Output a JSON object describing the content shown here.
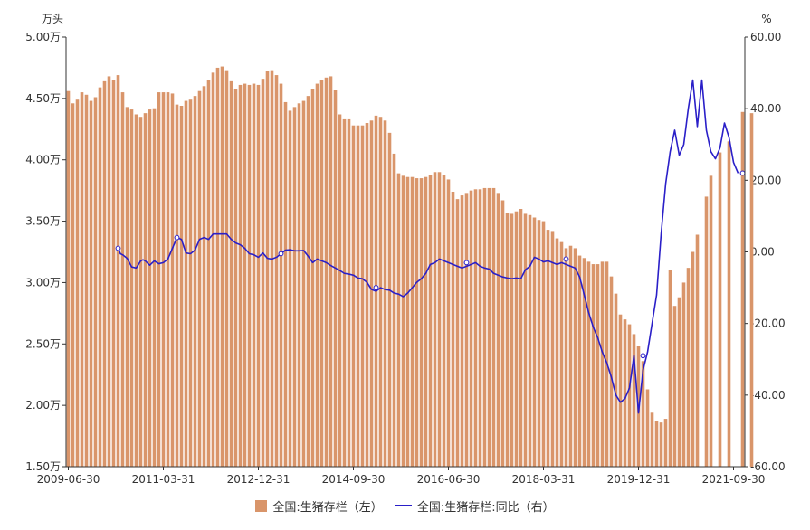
{
  "colors": {
    "bar": "#d9956a",
    "line": "#2a1fc8",
    "axis": "#333333"
  },
  "chart_data": {
    "type": "bar",
    "title": "",
    "left_unit": "万头",
    "right_unit": "%",
    "left_axis": {
      "min": 1.5,
      "max": 5.0,
      "ticks": [
        "1.50万",
        "2.00万",
        "2.50万",
        "3.00万",
        "3.50万",
        "4.00万",
        "4.50万",
        "5.00万"
      ]
    },
    "right_axis": {
      "min": -60,
      "max": 60,
      "ticks": [
        "-60.00",
        "-40.00",
        "-20.00",
        "0.00",
        "20.00",
        "40.00",
        "60.00"
      ]
    },
    "x_ticks": [
      {
        "index": 0,
        "label": "2009-06-30"
      },
      {
        "index": 21,
        "label": "2011-03-31"
      },
      {
        "index": 42,
        "label": "2012-12-31"
      },
      {
        "index": 63,
        "label": "2014-09-30"
      },
      {
        "index": 84,
        "label": "2016-06-30"
      },
      {
        "index": 105,
        "label": "2018-03-31"
      },
      {
        "index": 126,
        "label": "2019-12-31"
      },
      {
        "index": 147,
        "label": "2021-09-30"
      }
    ],
    "series": [
      {
        "name": "全国:生猪存栏（左）",
        "type": "bar",
        "axis": "left",
        "unit": "万头",
        "values": [
          4.56,
          4.46,
          4.49,
          4.55,
          4.53,
          4.48,
          4.51,
          4.59,
          4.64,
          4.68,
          4.65,
          4.69,
          4.55,
          4.43,
          4.41,
          4.37,
          4.35,
          4.38,
          4.41,
          4.42,
          4.55,
          4.55,
          4.55,
          4.54,
          4.45,
          4.44,
          4.48,
          4.49,
          4.52,
          4.56,
          4.6,
          4.65,
          4.71,
          4.75,
          4.76,
          4.73,
          4.64,
          4.58,
          4.61,
          4.62,
          4.61,
          4.62,
          4.61,
          4.66,
          4.72,
          4.73,
          4.69,
          4.62,
          4.47,
          4.4,
          4.43,
          4.46,
          4.48,
          4.52,
          4.58,
          4.62,
          4.65,
          4.67,
          4.68,
          4.57,
          4.37,
          4.33,
          4.33,
          4.28,
          4.28,
          4.28,
          4.3,
          4.32,
          4.36,
          4.35,
          4.32,
          4.22,
          4.05,
          3.89,
          3.87,
          3.86,
          3.86,
          3.85,
          3.85,
          3.86,
          3.88,
          3.9,
          3.9,
          3.88,
          3.84,
          3.74,
          3.68,
          3.71,
          3.73,
          3.75,
          3.76,
          3.76,
          3.77,
          3.77,
          3.77,
          3.73,
          3.67,
          3.57,
          3.56,
          3.58,
          3.6,
          3.56,
          3.55,
          3.53,
          3.51,
          3.5,
          3.43,
          3.42,
          3.36,
          3.33,
          3.28,
          3.3,
          3.28,
          3.22,
          3.2,
          3.17,
          3.15,
          3.15,
          3.17,
          3.17,
          3.05,
          2.91,
          2.74,
          2.7,
          2.66,
          2.58,
          2.48,
          2.36,
          2.13,
          1.94,
          1.87,
          1.86,
          1.89,
          3.1,
          2.81,
          2.88,
          3.0,
          3.12,
          3.25,
          3.39,
          null,
          3.7,
          3.87,
          null,
          4.06,
          null,
          4.15,
          null,
          null,
          4.39,
          null,
          4.38
        ]
      },
      {
        "name": "全国:生猪存栏:同比（右）",
        "type": "line",
        "axis": "right",
        "unit": "%",
        "x": [
          11,
          11.5,
          12,
          13,
          14,
          15,
          16,
          16.5,
          17,
          18,
          19,
          20,
          21,
          22,
          23,
          24,
          25,
          26,
          27,
          28,
          29,
          30,
          31,
          32,
          33,
          34,
          35,
          36,
          37,
          38,
          39,
          40,
          41,
          42,
          43,
          44,
          45,
          46,
          47,
          48,
          49,
          50,
          51,
          52,
          53,
          54,
          55,
          56,
          57,
          58,
          59,
          60,
          61,
          62,
          63,
          64,
          65,
          66,
          67,
          68,
          69,
          70,
          71,
          72,
          73,
          74,
          75,
          76,
          77,
          78,
          79,
          80,
          81,
          82,
          83,
          84,
          85,
          86,
          87,
          88,
          89,
          90,
          91,
          92,
          93,
          94,
          95,
          96,
          97,
          98,
          99,
          100,
          101,
          102,
          103,
          104,
          105,
          106,
          107,
          108,
          109,
          110,
          111,
          112,
          113,
          114,
          115,
          116,
          117,
          118,
          119,
          120,
          121,
          122,
          123,
          124,
          125,
          126,
          127,
          128,
          129,
          130,
          131,
          132,
          133,
          134,
          135,
          136,
          137,
          138,
          139,
          140,
          141,
          142,
          143,
          144,
          145,
          146,
          147,
          148
        ],
        "values": [
          1.0,
          -0.5,
          -0.8,
          -1.8,
          -4.2,
          -4.5,
          -2.5,
          -2.2,
          -2.5,
          -3.7,
          -2.5,
          -3.3,
          -3.0,
          -2.0,
          1.0,
          4.0,
          3.5,
          -0.3,
          -0.5,
          0.5,
          3.5,
          4.0,
          3.5,
          5.0,
          5.0,
          5.0,
          5.0,
          3.5,
          2.5,
          2.0,
          1.0,
          -0.5,
          -0.8,
          -1.5,
          -0.3,
          -1.8,
          -2.0,
          -1.5,
          -0.5,
          0.5,
          0.6,
          0.3,
          0.3,
          0.4,
          -1.2,
          -3.0,
          -2.0,
          -2.5,
          -3.0,
          -3.8,
          -4.5,
          -5.2,
          -6.0,
          -6.2,
          -6.5,
          -7.3,
          -7.5,
          -8.5,
          -10.5,
          -11.0,
          -10.0,
          -10.5,
          -10.7,
          -11.5,
          -11.8,
          -12.5,
          -11.5,
          -10.0,
          -8.5,
          -7.5,
          -6.0,
          -3.5,
          -3.0,
          -2.0,
          -2.5,
          -3.0,
          -3.5,
          -4.0,
          -4.5,
          -4.0,
          -3.5,
          -3.0,
          -4.0,
          -4.5,
          -4.8,
          -6.0,
          -6.5,
          -7.0,
          -7.3,
          -7.5,
          -7.3,
          -7.5,
          -5.0,
          -4.0,
          -1.5,
          -2.0,
          -2.8,
          -2.5,
          -3.0,
          -3.5,
          -3.0,
          -3.5,
          -4.0,
          -4.5,
          -7.0,
          -12.0,
          -17.0,
          -21.0,
          -24.0,
          -28.0,
          -31.0,
          -35.0,
          -40.0,
          -42.0,
          -41.0,
          -38.0,
          -29.0,
          -45.0,
          -33.0,
          -28.0,
          -20.0,
          -12.0,
          5.0,
          19.0,
          28.0,
          34.0,
          27.0,
          30.0,
          40.0,
          48.0,
          35.0,
          48.0,
          34.0,
          28.0,
          26.0,
          29.0,
          36.0,
          32.0,
          25.0,
          22.0
        ]
      }
    ],
    "marker_points": [
      {
        "x": 11,
        "y": 1.0
      },
      {
        "x": 24,
        "y": 4.0
      },
      {
        "x": 47,
        "y": -0.5
      },
      {
        "x": 68,
        "y": -10.0
      },
      {
        "x": 88,
        "y": -3.0
      },
      {
        "x": 110,
        "y": -2.0
      },
      {
        "x": 127,
        "y": -29.0
      },
      {
        "x": 149,
        "y": 22.0
      }
    ],
    "legend_position": "bottom",
    "grid": false
  }
}
